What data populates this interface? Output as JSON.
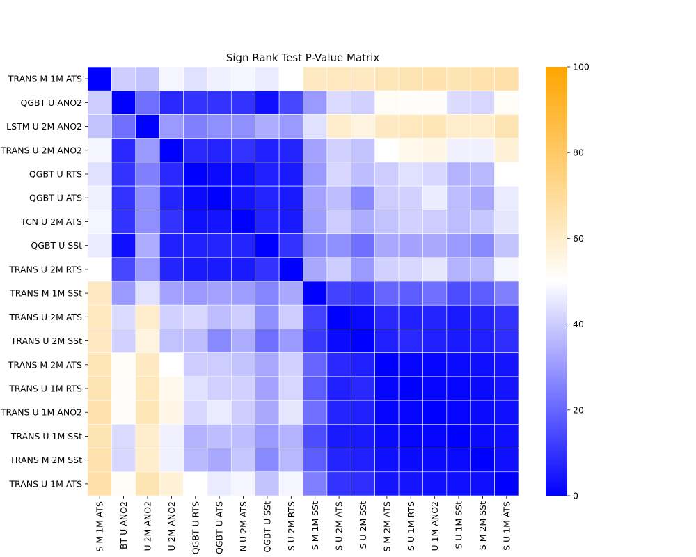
{
  "chart_data": {
    "type": "heatmap",
    "title": "Sign Rank Test P-Value Matrix",
    "xlabel": "",
    "ylabel": "",
    "row_labels": [
      "TRANS M 1M ATS",
      "QGBT U ANO2",
      "LSTM U 2M ANO2",
      "TRANS U 2M ANO2",
      "QGBT U RTS",
      "QGBT U ATS",
      "TCN U 2M ATS",
      "QGBT U SSt",
      "TRANS U 2M RTS",
      "TRANS M 1M SSt",
      "TRANS U 2M ATS",
      "TRANS U 2M SSt",
      "TRANS M 2M ATS",
      "TRANS U 1M RTS",
      "TRANS U 1M ANO2",
      "TRANS U 1M SSt",
      "TRANS M 2M SSt",
      "TRANS U 1M ATS"
    ],
    "col_labels": [
      "S M 1M ATS",
      "BT U ANO2",
      "U 2M ANO2",
      "U 2M ANO2",
      "QGBT U RTS",
      "QGBT U ATS",
      "N U 2M ATS",
      "QGBT U SSt",
      "S U 2M RTS",
      "S M 1M SSt",
      "S U 2M ATS",
      "S U 2M SSt",
      "S M 2M ATS",
      "S U 1M RTS",
      "U 1M ANO2",
      "S U 1M SSt",
      "S M 2M SSt",
      "S U 1M ATS"
    ],
    "values": [
      [
        0,
        40,
        38,
        48,
        44,
        47,
        48,
        46,
        50,
        62,
        63,
        62,
        64,
        65,
        66,
        65,
        66,
        67
      ],
      [
        40,
        0,
        22,
        8,
        10,
        10,
        10,
        3,
        14,
        30,
        43,
        41,
        52,
        51,
        51,
        43,
        42,
        52
      ],
      [
        38,
        22,
        0,
        30,
        25,
        28,
        28,
        34,
        30,
        44,
        60,
        56,
        62,
        63,
        64,
        60,
        60,
        65
      ],
      [
        48,
        8,
        30,
        0,
        8,
        7,
        10,
        6,
        7,
        32,
        41,
        38,
        50,
        54,
        55,
        47,
        47,
        58
      ],
      [
        44,
        10,
        25,
        8,
        0,
        2,
        3,
        6,
        5,
        30,
        42,
        37,
        40,
        44,
        42,
        35,
        36,
        50
      ],
      [
        47,
        10,
        28,
        7,
        2,
        0,
        4,
        7,
        5,
        32,
        37,
        27,
        40,
        41,
        46,
        37,
        33,
        46
      ],
      [
        48,
        10,
        28,
        10,
        3,
        4,
        0,
        7,
        5,
        31,
        40,
        34,
        38,
        41,
        40,
        37,
        39,
        45
      ],
      [
        46,
        3,
        34,
        6,
        6,
        7,
        7,
        0,
        10,
        26,
        28,
        22,
        33,
        32,
        33,
        30,
        27,
        38
      ],
      [
        50,
        14,
        30,
        7,
        5,
        5,
        5,
        10,
        0,
        33,
        40,
        30,
        41,
        42,
        45,
        35,
        36,
        48
      ],
      [
        62,
        30,
        44,
        32,
        30,
        32,
        31,
        26,
        33,
        0,
        13,
        11,
        20,
        18,
        22,
        15,
        18,
        25
      ],
      [
        63,
        43,
        60,
        41,
        42,
        37,
        40,
        28,
        40,
        13,
        0,
        2,
        8,
        6,
        7,
        5,
        7,
        10
      ],
      [
        62,
        41,
        56,
        38,
        37,
        27,
        34,
        22,
        30,
        11,
        2,
        0,
        6,
        8,
        6,
        5,
        6,
        9
      ],
      [
        64,
        52,
        62,
        50,
        40,
        40,
        38,
        33,
        41,
        20,
        8,
        6,
        0,
        1,
        1,
        2,
        3,
        4
      ],
      [
        65,
        51,
        63,
        54,
        44,
        41,
        41,
        32,
        42,
        18,
        6,
        8,
        1,
        0,
        1,
        1,
        2,
        4
      ],
      [
        66,
        51,
        64,
        55,
        42,
        46,
        40,
        33,
        45,
        22,
        7,
        6,
        1,
        1,
        0,
        1,
        2,
        3
      ],
      [
        65,
        43,
        60,
        47,
        35,
        37,
        37,
        30,
        35,
        15,
        5,
        5,
        2,
        1,
        1,
        0,
        2,
        3
      ],
      [
        66,
        42,
        60,
        47,
        36,
        33,
        39,
        27,
        36,
        18,
        7,
        6,
        3,
        2,
        2,
        2,
        0,
        3
      ],
      [
        67,
        52,
        65,
        58,
        50,
        46,
        48,
        38,
        48,
        25,
        10,
        9,
        4,
        4,
        3,
        3,
        3,
        0
      ]
    ],
    "colorscale": {
      "min": 0,
      "mid": 50,
      "max": 100,
      "colors": [
        "#0000ff",
        "#ffffff",
        "#ffa500"
      ]
    },
    "colorbar_ticks": [
      0,
      20,
      40,
      60,
      80,
      100
    ],
    "grid_line_color": "#ffffff"
  }
}
